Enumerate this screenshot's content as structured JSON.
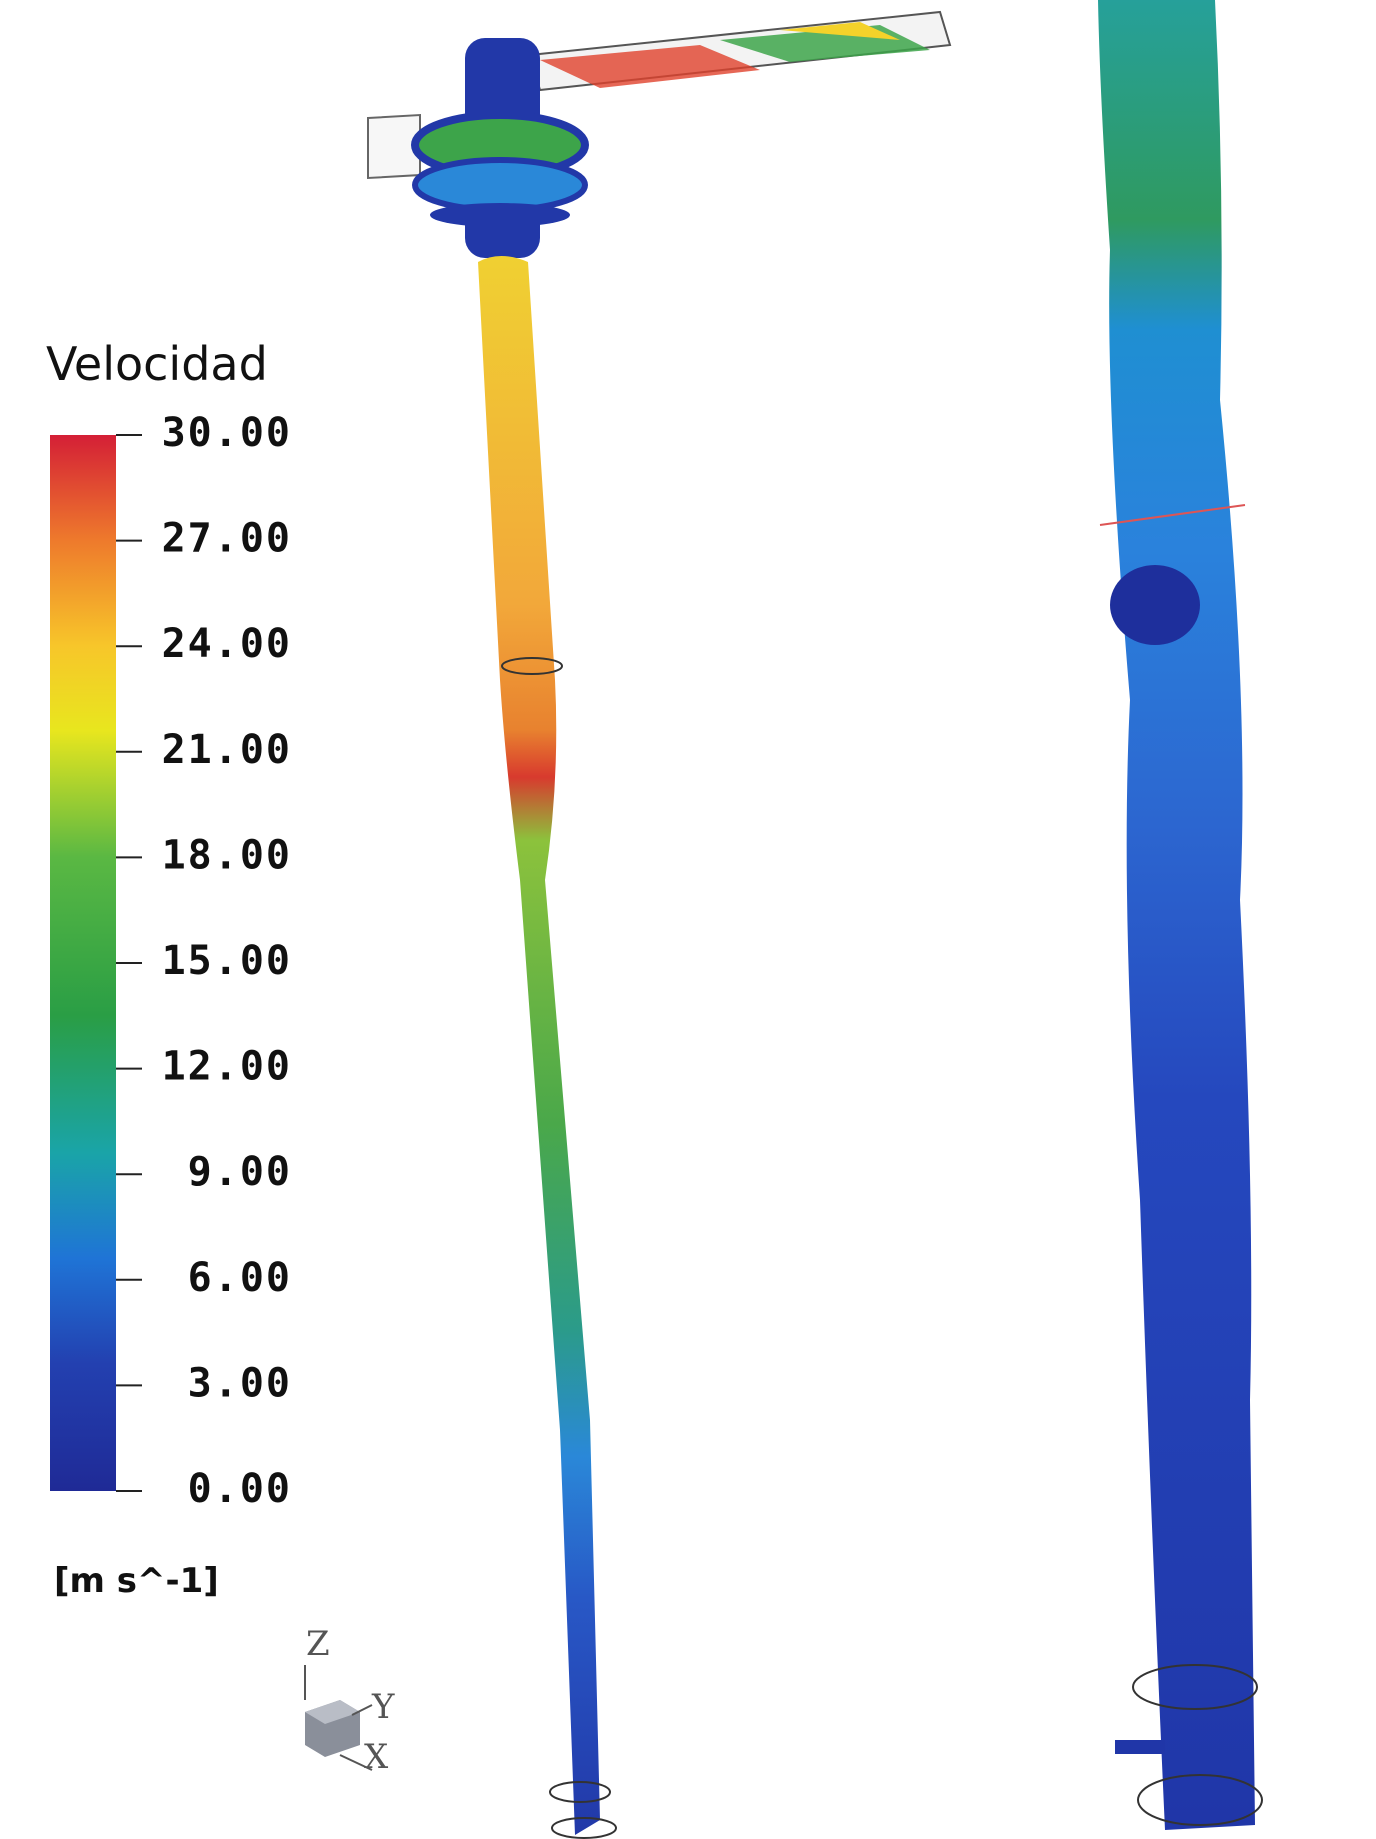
{
  "colorbar": {
    "title": "Velocidad",
    "unit": "[m  s^-1]",
    "range": [
      0,
      30
    ],
    "ticks": [
      {
        "value": 30,
        "label": "30.00"
      },
      {
        "value": 27,
        "label": "27.00"
      },
      {
        "value": 24,
        "label": "24.00"
      },
      {
        "value": 21,
        "label": "21.00"
      },
      {
        "value": 18,
        "label": "18.00"
      },
      {
        "value": 15,
        "label": "15.00"
      },
      {
        "value": 12,
        "label": "12.00"
      },
      {
        "value": 9,
        "label": "9.00"
      },
      {
        "value": 6,
        "label": "6.00"
      },
      {
        "value": 3,
        "label": "3.00"
      },
      {
        "value": 0,
        "label": "0.00"
      }
    ]
  },
  "axes": {
    "z": "Z",
    "y": "Y",
    "x": "X"
  }
}
